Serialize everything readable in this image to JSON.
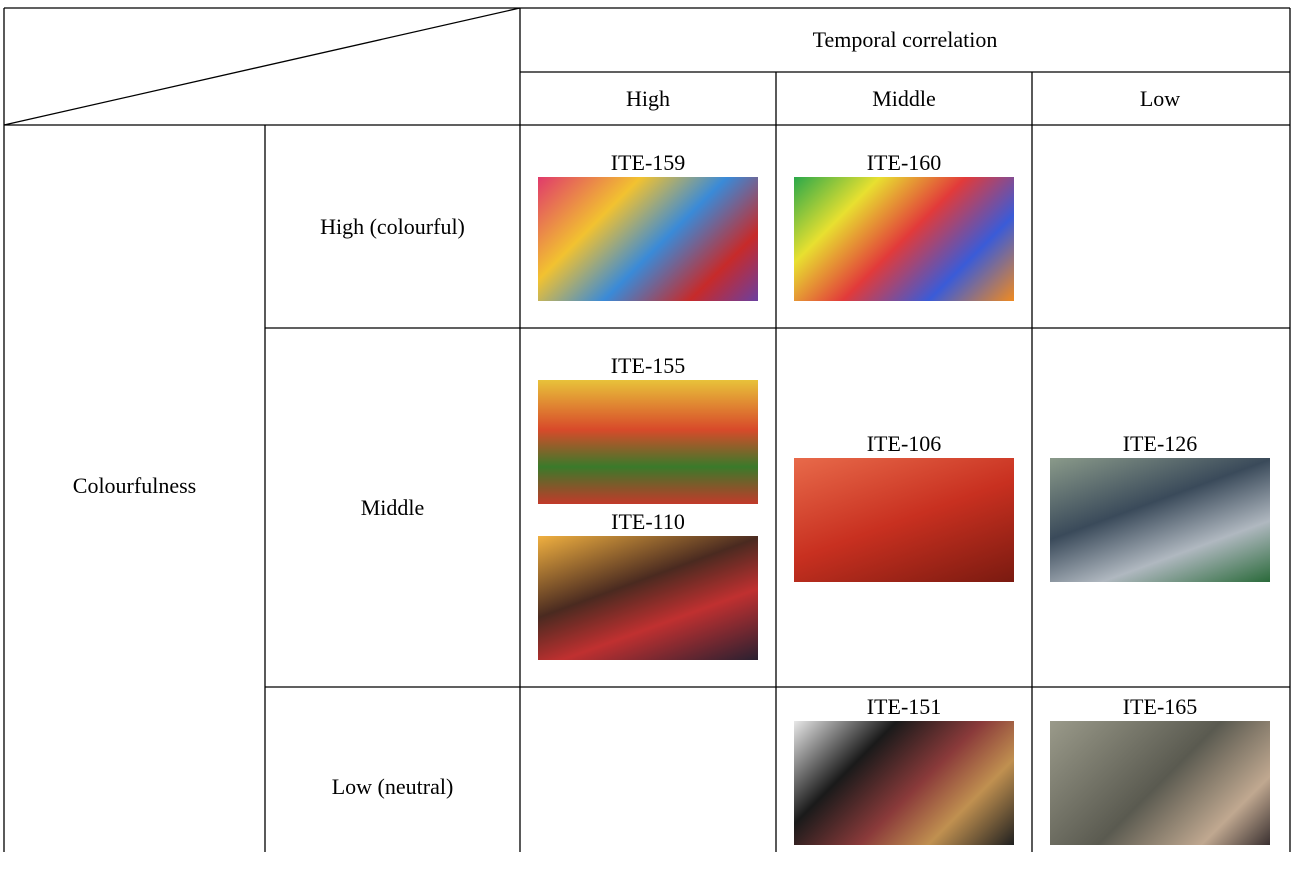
{
  "column_group": "Temporal correlation",
  "columns": [
    "High",
    "Middle",
    "Low"
  ],
  "row_group": "Colourfulness",
  "rows": [
    {
      "label": "High (colourful)",
      "cells": [
        [
          "ITE-159"
        ],
        [
          "ITE-160"
        ],
        []
      ]
    },
    {
      "label": "Middle",
      "cells": [
        [
          "ITE-155",
          "ITE-110"
        ],
        [
          "ITE-106"
        ],
        [
          "ITE-126"
        ]
      ]
    },
    {
      "label": "Low (neutral)",
      "cells": [
        [],
        [
          "ITE-151"
        ],
        [
          "ITE-165"
        ]
      ]
    }
  ]
}
